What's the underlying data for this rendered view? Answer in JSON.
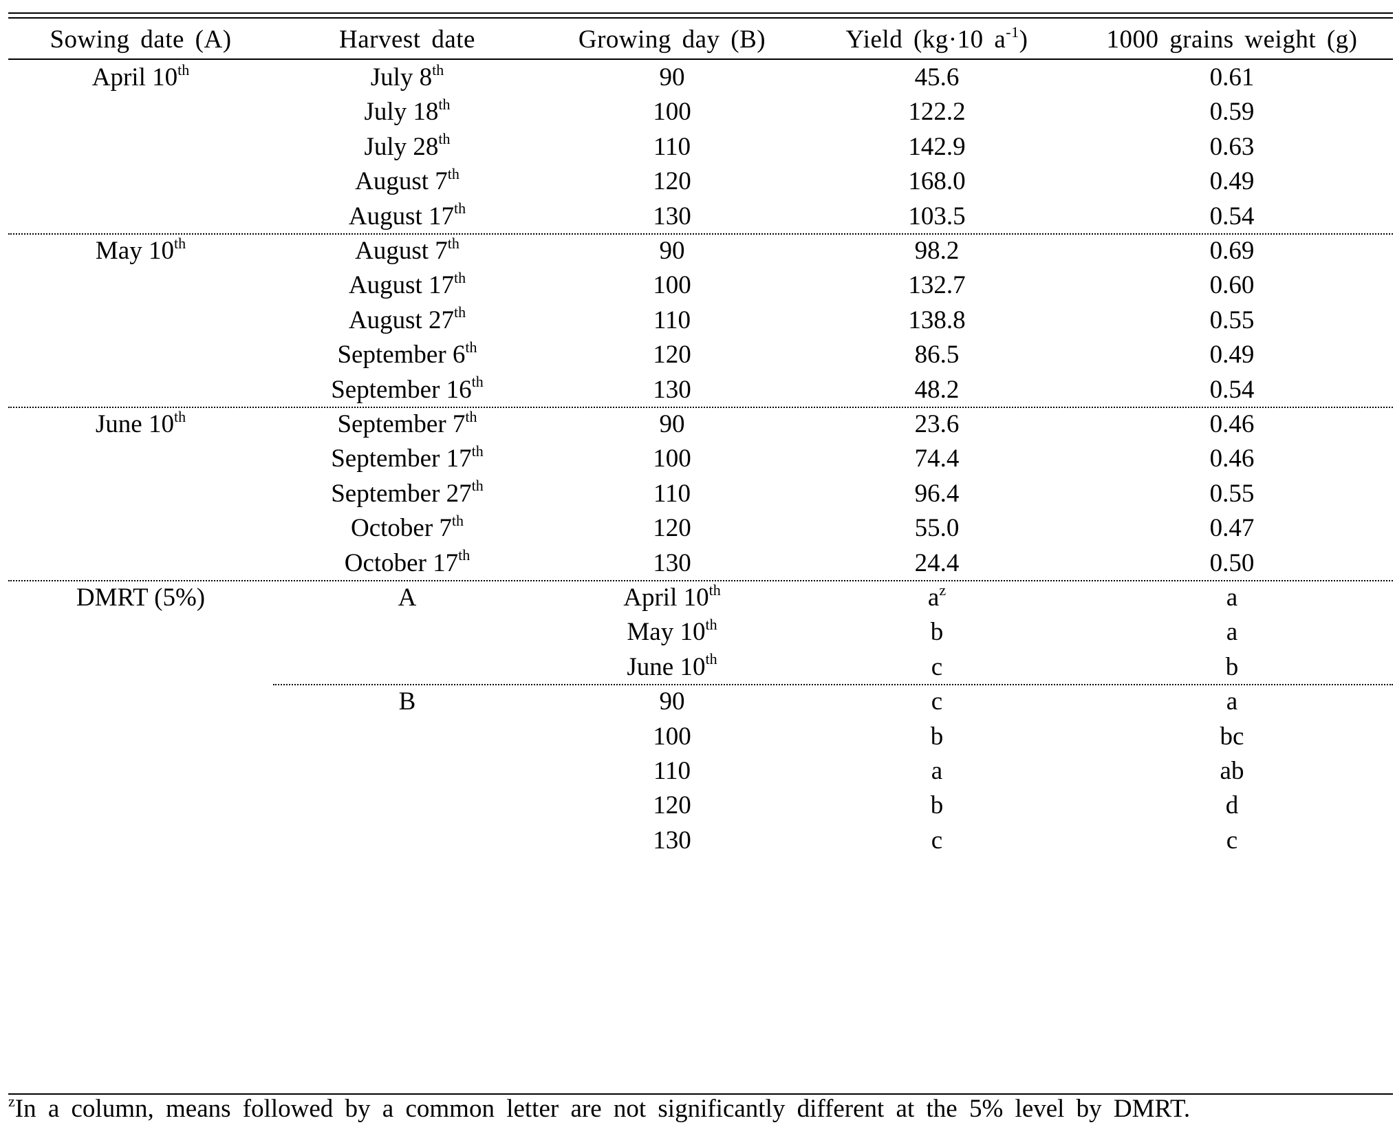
{
  "table": {
    "headers": [
      "Sowing date (A)",
      "Harvest date",
      "Growing day (B)",
      "Yield (kg·10 a",
      "1000 grains weight (g)"
    ],
    "yield_unit_exp": "-1",
    "yield_unit_close": ")",
    "groups": [
      {
        "sowing": "April 10",
        "sowing_sup": "th",
        "rows": [
          {
            "harvest": "July 8",
            "sup": "th",
            "day": "90",
            "yield": "45.6",
            "weight": "0.61"
          },
          {
            "harvest": "July 18",
            "sup": "th",
            "day": "100",
            "yield": "122.2",
            "weight": "0.59"
          },
          {
            "harvest": "July 28",
            "sup": "th",
            "day": "110",
            "yield": "142.9",
            "weight": "0.63"
          },
          {
            "harvest": "August 7",
            "sup": "th",
            "day": "120",
            "yield": "168.0",
            "weight": "0.49"
          },
          {
            "harvest": "August 17",
            "sup": "th",
            "day": "130",
            "yield": "103.5",
            "weight": "0.54"
          }
        ]
      },
      {
        "sowing": "May 10",
        "sowing_sup": "th",
        "rows": [
          {
            "harvest": "August 7",
            "sup": "th",
            "day": "90",
            "yield": "98.2",
            "weight": "0.69"
          },
          {
            "harvest": "August 17",
            "sup": "th",
            "day": "100",
            "yield": "132.7",
            "weight": "0.60"
          },
          {
            "harvest": "August 27",
            "sup": "th",
            "day": "110",
            "yield": "138.8",
            "weight": "0.55"
          },
          {
            "harvest": "September 6",
            "sup": "th",
            "day": "120",
            "yield": "86.5",
            "weight": "0.49"
          },
          {
            "harvest": "September 16",
            "sup": "th",
            "day": "130",
            "yield": "48.2",
            "weight": "0.54"
          }
        ]
      },
      {
        "sowing": "June 10",
        "sowing_sup": "th",
        "rows": [
          {
            "harvest": "September 7",
            "sup": "th",
            "day": "90",
            "yield": "23.6",
            "weight": "0.46"
          },
          {
            "harvest": "September 17",
            "sup": "th",
            "day": "100",
            "yield": "74.4",
            "weight": "0.46"
          },
          {
            "harvest": "September 27",
            "sup": "th",
            "day": "110",
            "yield": "96.4",
            "weight": "0.55"
          },
          {
            "harvest": "October 7",
            "sup": "th",
            "day": "120",
            "yield": "55.0",
            "weight": "0.47"
          },
          {
            "harvest": "October 17",
            "sup": "th",
            "day": "130",
            "yield": "24.4",
            "weight": "0.50"
          }
        ]
      }
    ],
    "dmrt": {
      "label": "DMRT (5%)",
      "factor_a": "A",
      "factor_b": "B",
      "a_rows": [
        {
          "level": "April 10",
          "sup": "th",
          "yield": "a",
          "yield_sup": "z",
          "weight": "a"
        },
        {
          "level": "May 10",
          "sup": "th",
          "yield": "b",
          "yield_sup": "",
          "weight": "a"
        },
        {
          "level": "June 10",
          "sup": "th",
          "yield": "c",
          "yield_sup": "",
          "weight": "b"
        }
      ],
      "b_rows": [
        {
          "level": "90",
          "yield": "c",
          "weight": "a"
        },
        {
          "level": "100",
          "yield": "b",
          "weight": "bc"
        },
        {
          "level": "110",
          "yield": "a",
          "weight": "ab"
        },
        {
          "level": "120",
          "yield": "b",
          "weight": "d"
        },
        {
          "level": "130",
          "yield": "c",
          "weight": "c"
        }
      ]
    }
  },
  "footnote": {
    "mark": "z",
    "text": "In a column, means followed by a common letter are not significantly different at the 5% level by DMRT."
  }
}
